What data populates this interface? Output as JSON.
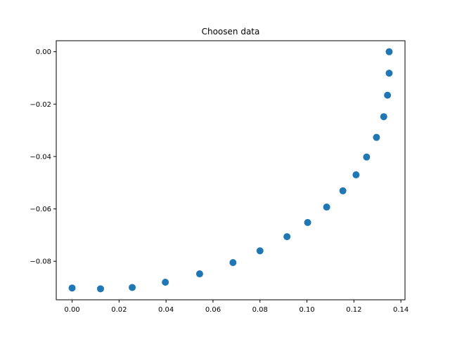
{
  "chart_data": {
    "type": "scatter",
    "title": "Choosen data",
    "xlabel": "",
    "ylabel": "",
    "xlim": [
      -0.00675,
      0.14175
    ],
    "ylim": [
      -0.0947,
      0.0042
    ],
    "xticks": [
      0.0,
      0.02,
      0.04,
      0.06,
      0.08,
      0.1,
      0.12,
      0.14
    ],
    "xtick_labels": [
      "0.00",
      "0.02",
      "0.04",
      "0.06",
      "0.08",
      "0.10",
      "0.12",
      "0.14"
    ],
    "yticks": [
      -0.08,
      -0.06,
      -0.04,
      -0.02,
      0.0
    ],
    "ytick_labels": [
      "−0.08",
      "−0.06",
      "−0.04",
      "−0.02",
      "0.00"
    ],
    "grid": false,
    "series": [
      {
        "color": "#1f77b4",
        "points": [
          {
            "x": 0.0,
            "y": -0.0902
          },
          {
            "x": 0.0121,
            "y": -0.0905
          },
          {
            "x": 0.0256,
            "y": -0.09
          },
          {
            "x": 0.0397,
            "y": -0.088
          },
          {
            "x": 0.0543,
            "y": -0.0848
          },
          {
            "x": 0.0685,
            "y": -0.0805
          },
          {
            "x": 0.08,
            "y": -0.076
          },
          {
            "x": 0.0915,
            "y": -0.0706
          },
          {
            "x": 0.1003,
            "y": -0.0652
          },
          {
            "x": 0.1084,
            "y": -0.0593
          },
          {
            "x": 0.1153,
            "y": -0.0531
          },
          {
            "x": 0.1209,
            "y": -0.047
          },
          {
            "x": 0.1254,
            "y": -0.0402
          },
          {
            "x": 0.1296,
            "y": -0.0327
          },
          {
            "x": 0.1327,
            "y": -0.0248
          },
          {
            "x": 0.1343,
            "y": -0.0166
          },
          {
            "x": 0.135,
            "y": -0.0082
          },
          {
            "x": 0.135,
            "y": 0.0
          }
        ]
      }
    ]
  }
}
